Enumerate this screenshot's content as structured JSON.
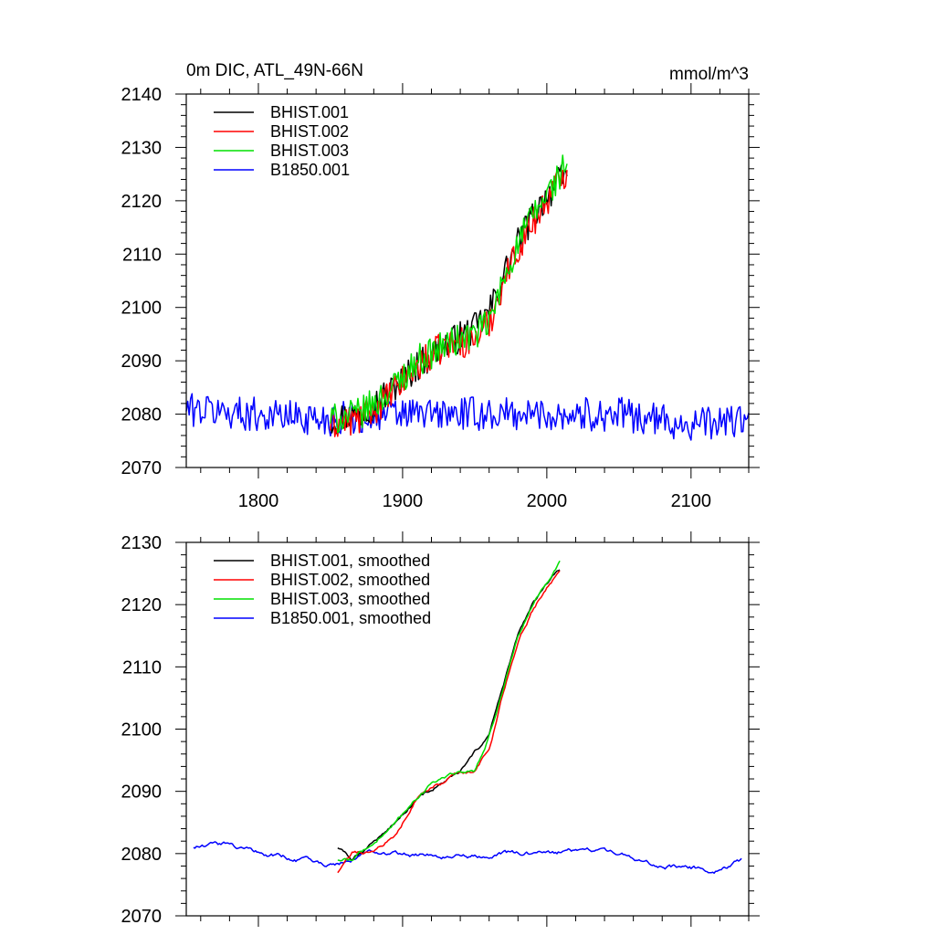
{
  "chart_data": [
    {
      "type": "line",
      "title": "0m DIC, ATL_49N-66N",
      "units": "mmol/m^3",
      "xlim": [
        1750,
        2140
      ],
      "ylim": [
        2070,
        2140
      ],
      "x_ticks": [
        1800,
        1900,
        2000,
        2100
      ],
      "x_tick_labels": [
        "1800",
        "1900",
        "2000",
        "2100"
      ],
      "y_ticks": [
        2070,
        2080,
        2090,
        2100,
        2110,
        2120,
        2130,
        2140
      ],
      "y_tick_labels": [
        "2070",
        "2080",
        "2090",
        "2100",
        "2110",
        "2120",
        "2130",
        "2140"
      ],
      "grid": false,
      "legend_position": "top-left",
      "series": [
        {
          "name": "BHIST.001",
          "color": "#000000",
          "x_range": [
            1850,
            2014
          ],
          "anchors": [
            [
              1850,
              2079
            ],
            [
              1870,
              2080
            ],
            [
              1890,
              2084
            ],
            [
              1910,
              2089
            ],
            [
              1930,
              2093
            ],
            [
              1950,
              2096
            ],
            [
              1960,
              2099
            ],
            [
              1970,
              2106
            ],
            [
              1980,
              2112
            ],
            [
              1990,
              2117
            ],
            [
              2000,
              2121
            ],
            [
              2014,
              2125
            ]
          ],
          "noise": 3.0
        },
        {
          "name": "BHIST.002",
          "color": "#ff0000",
          "x_range": [
            1850,
            2014
          ],
          "anchors": [
            [
              1850,
              2078
            ],
            [
              1870,
              2079
            ],
            [
              1890,
              2083
            ],
            [
              1910,
              2089
            ],
            [
              1930,
              2093
            ],
            [
              1950,
              2094
            ],
            [
              1960,
              2097
            ],
            [
              1970,
              2105
            ],
            [
              1980,
              2111
            ],
            [
              1990,
              2116
            ],
            [
              2000,
              2120
            ],
            [
              2014,
              2126
            ]
          ],
          "noise": 3.0
        },
        {
          "name": "BHIST.003",
          "color": "#00e000",
          "x_range": [
            1850,
            2014
          ],
          "anchors": [
            [
              1850,
              2079
            ],
            [
              1870,
              2080
            ],
            [
              1890,
              2084
            ],
            [
              1910,
              2090
            ],
            [
              1930,
              2093
            ],
            [
              1950,
              2095
            ],
            [
              1960,
              2097
            ],
            [
              1970,
              2105
            ],
            [
              1980,
              2112
            ],
            [
              1990,
              2117
            ],
            [
              2000,
              2121
            ],
            [
              2014,
              2127
            ]
          ],
          "noise": 3.0
        },
        {
          "name": "B1850.001",
          "color": "#0000ff",
          "x_range": [
            1750,
            2140
          ],
          "anchors": [
            [
              1750,
              2081
            ],
            [
              1800,
              2080
            ],
            [
              1850,
              2079
            ],
            [
              1900,
              2080
            ],
            [
              1950,
              2080
            ],
            [
              2000,
              2080
            ],
            [
              2050,
              2080
            ],
            [
              2100,
              2078
            ],
            [
              2140,
              2079
            ]
          ],
          "noise": 3.2
        }
      ]
    },
    {
      "type": "line",
      "xlim": [
        1750,
        2140
      ],
      "ylim": [
        2070,
        2130
      ],
      "x_ticks": [
        1800,
        1900,
        2000,
        2100
      ],
      "y_ticks": [
        2070,
        2080,
        2090,
        2100,
        2110,
        2120,
        2130
      ],
      "y_tick_labels": [
        "2070",
        "2080",
        "2090",
        "2100",
        "2110",
        "2120",
        "2130"
      ],
      "grid": false,
      "legend_position": "top-left",
      "series": [
        {
          "name": "BHIST.001, smoothed",
          "color": "#000000",
          "x_range": [
            1855,
            2009
          ],
          "anchors": [
            [
              1855,
              2081
            ],
            [
              1865,
              2079
            ],
            [
              1880,
              2082
            ],
            [
              1895,
              2085
            ],
            [
              1910,
              2089
            ],
            [
              1925,
              2091
            ],
            [
              1940,
              2093
            ],
            [
              1950,
              2096
            ],
            [
              1960,
              2099
            ],
            [
              1970,
              2107
            ],
            [
              1980,
              2115
            ],
            [
              1990,
              2120
            ],
            [
              2000,
              2123
            ],
            [
              2009,
              2125.5
            ]
          ],
          "noise": 0.4
        },
        {
          "name": "BHIST.002, smoothed",
          "color": "#ff0000",
          "x_range": [
            1855,
            2009
          ],
          "anchors": [
            [
              1855,
              2077
            ],
            [
              1865,
              2080
            ],
            [
              1880,
              2080
            ],
            [
              1895,
              2083
            ],
            [
              1910,
              2089
            ],
            [
              1925,
              2091
            ],
            [
              1940,
              2093
            ],
            [
              1950,
              2093
            ],
            [
              1960,
              2097
            ],
            [
              1970,
              2106
            ],
            [
              1980,
              2114
            ],
            [
              1990,
              2119
            ],
            [
              2000,
              2123
            ],
            [
              2009,
              2125.5
            ]
          ],
          "noise": 0.4
        },
        {
          "name": "BHIST.003, smoothed",
          "color": "#00e000",
          "x_range": [
            1855,
            2009
          ],
          "anchors": [
            [
              1855,
              2079
            ],
            [
              1865,
              2079
            ],
            [
              1880,
              2082
            ],
            [
              1895,
              2085
            ],
            [
              1910,
              2089
            ],
            [
              1925,
              2092
            ],
            [
              1940,
              2093
            ],
            [
              1950,
              2093
            ],
            [
              1960,
              2099
            ],
            [
              1970,
              2107
            ],
            [
              1980,
              2115
            ],
            [
              1990,
              2120
            ],
            [
              2000,
              2124
            ],
            [
              2009,
              2127
            ]
          ],
          "noise": 0.4
        },
        {
          "name": "B1850.001, smoothed",
          "color": "#0000ff",
          "x_range": [
            1755,
            2135
          ],
          "anchors": [
            [
              1755,
              2081
            ],
            [
              1780,
              2081.5
            ],
            [
              1800,
              2080
            ],
            [
              1820,
              2079.5
            ],
            [
              1850,
              2078
            ],
            [
              1875,
              2080
            ],
            [
              1900,
              2080
            ],
            [
              1925,
              2079.5
            ],
            [
              1950,
              2079.5
            ],
            [
              1975,
              2080
            ],
            [
              2000,
              2080
            ],
            [
              2025,
              2080.5
            ],
            [
              2050,
              2080
            ],
            [
              2075,
              2078
            ],
            [
              2100,
              2077.5
            ],
            [
              2120,
              2077.5
            ],
            [
              2135,
              2079
            ]
          ],
          "noise": 0.5
        }
      ]
    }
  ]
}
